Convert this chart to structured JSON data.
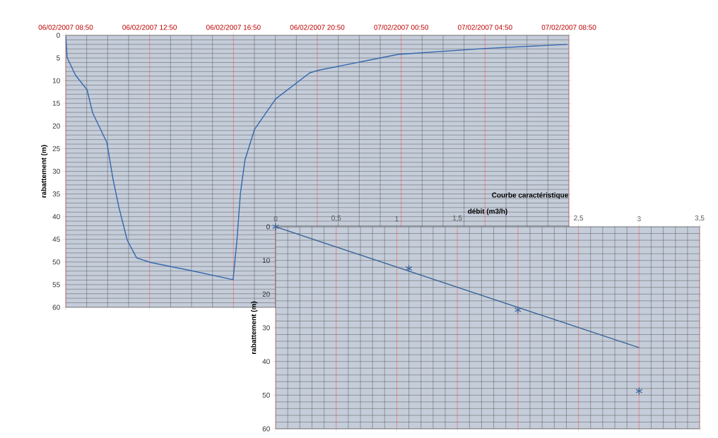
{
  "chart_data": [
    {
      "type": "line",
      "ylabel": "rabattement (m)",
      "x": [
        "2007-02-06T08:50",
        "2007-02-06T08:54",
        "2007-02-06T09:18",
        "2007-02-06T09:51",
        "2007-02-06T10:07",
        "2007-02-06T10:48",
        "2007-02-06T11:05",
        "2007-02-06T11:22",
        "2007-02-06T11:46",
        "2007-02-06T12:13",
        "2007-02-06T12:53",
        "2007-02-06T14:48",
        "2007-02-06T16:49",
        "2007-02-06T17:00",
        "2007-02-06T17:10",
        "2007-02-06T17:23",
        "2007-02-06T17:50",
        "2007-02-06T18:51",
        "2007-02-06T20:28",
        "2007-02-06T20:48",
        "2007-02-07T00:41",
        "2007-02-07T04:50",
        "2007-02-07T08:46"
      ],
      "series": [
        {
          "color": "#3567b0",
          "values": [
            0,
            4.9,
            8.8,
            12.0,
            17.1,
            23.7,
            31.6,
            37.9,
            45.2,
            49.1,
            50.1,
            51.9,
            53.9,
            45.2,
            34.8,
            27.5,
            20.8,
            14.0,
            8.3,
            7.8,
            4.2,
            2.9,
            2.0
          ]
        }
      ],
      "xlim": [
        "2007-02-06T08:50",
        "2007-02-07T08:50"
      ],
      "xticks": [
        {
          "value": "2007-02-06T08:50",
          "label": "06/02/2007 08:50"
        },
        {
          "value": "2007-02-06T12:50",
          "label": "06/02/2007 12:50"
        },
        {
          "value": "2007-02-06T16:50",
          "label": "06/02/2007 16:50"
        },
        {
          "value": "2007-02-06T20:50",
          "label": "06/02/2007 20:50"
        },
        {
          "value": "2007-02-07T00:50",
          "label": "07/02/2007 00:50"
        },
        {
          "value": "2007-02-07T04:50",
          "label": "07/02/2007 04:50"
        },
        {
          "value": "2007-02-07T08:50",
          "label": "07/02/2007 08:50"
        }
      ],
      "ylim": [
        60,
        0
      ],
      "yticks": [
        0,
        5,
        10,
        15,
        20,
        25,
        30,
        35,
        40,
        45,
        50,
        55,
        60
      ],
      "grid": true
    },
    {
      "type": "scatter",
      "title": "Courbe caractéristique",
      "xlabel": "débit (m3/h)",
      "ylabel": "rabattement (m)",
      "series": [
        {
          "type": "scatter",
          "marker": "cross",
          "color": "#3d6499",
          "x": [
            0,
            1.1,
            2.0,
            3.0
          ],
          "values": [
            0,
            12.4,
            24.7,
            48.8
          ]
        },
        {
          "type": "line",
          "color": "#3d6499",
          "x": [
            0,
            3
          ],
          "values": [
            0,
            35.9
          ]
        }
      ],
      "xlim": [
        0,
        3.5
      ],
      "xticks": [
        0,
        {
          "value": 0.5,
          "label": "0,5"
        },
        1,
        {
          "value": 1.5,
          "label": "1,5"
        },
        {
          "value": 2,
          "label": null
        },
        {
          "value": 2.5,
          "label": "2,5"
        },
        3,
        {
          "value": 3.5,
          "label": "3,5"
        }
      ],
      "ylim": [
        60,
        0
      ],
      "yticks": [
        0,
        10,
        20,
        30,
        40,
        50,
        60
      ],
      "grid": true
    }
  ]
}
